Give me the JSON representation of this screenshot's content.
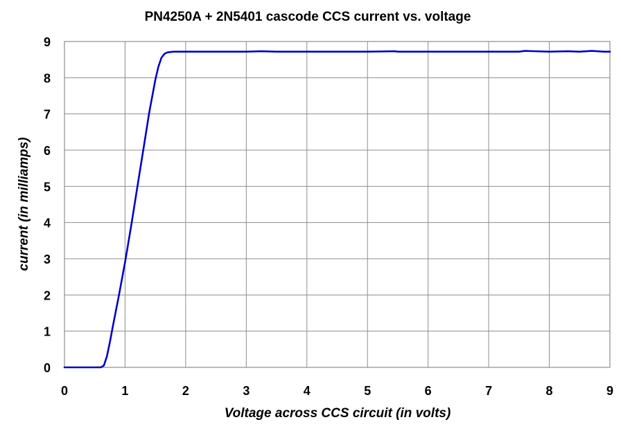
{
  "chart_data": {
    "type": "line",
    "title": "PN4250A + 2N5401 cascode CCS    current  vs.  voltage",
    "xlabel": "Voltage across CCS circuit  (in volts)",
    "ylabel": "current  (in milliamps)",
    "xlim": [
      0,
      9
    ],
    "ylim": [
      0,
      9
    ],
    "x_ticks": [
      "0",
      "1",
      "2",
      "3",
      "4",
      "5",
      "6",
      "7",
      "8",
      "9"
    ],
    "y_ticks": [
      "0",
      "1",
      "2",
      "3",
      "4",
      "5",
      "6",
      "7",
      "8",
      "9"
    ],
    "grid": true,
    "legend": "none",
    "series": [
      {
        "color": "#0000cc",
        "x": [
          0,
          0.6,
          0.65,
          0.7,
          0.75,
          0.8,
          0.9,
          1.0,
          1.1,
          1.2,
          1.3,
          1.4,
          1.5,
          1.55,
          1.6,
          1.65,
          1.7,
          1.75,
          1.8,
          2.0,
          2.5,
          3.0,
          3.25,
          3.5,
          4.0,
          4.5,
          5.0,
          5.45,
          5.5,
          6.0,
          6.5,
          7.0,
          7.5,
          7.6,
          8.0,
          8.3,
          8.5,
          8.7,
          8.9,
          9.0
        ],
        "y": [
          0,
          0,
          0.05,
          0.3,
          0.7,
          1.15,
          2.0,
          2.9,
          3.9,
          4.95,
          6.0,
          7.05,
          7.95,
          8.3,
          8.55,
          8.66,
          8.7,
          8.71,
          8.72,
          8.72,
          8.72,
          8.72,
          8.73,
          8.72,
          8.72,
          8.72,
          8.72,
          8.73,
          8.72,
          8.72,
          8.72,
          8.72,
          8.72,
          8.74,
          8.72,
          8.73,
          8.72,
          8.74,
          8.72,
          8.72
        ]
      }
    ]
  }
}
